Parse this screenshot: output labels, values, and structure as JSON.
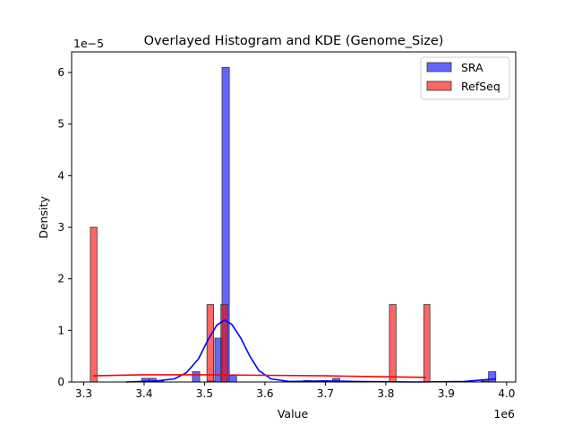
{
  "chart_data": {
    "type": "histogram+kde",
    "title": "Overlayed Histogram and KDE (Genome_Size)",
    "xlabel": "Value",
    "ylabel": "Density",
    "x_offset_label": "1e6",
    "y_offset_label": "1e−5",
    "xlim": [
      3.28,
      4.015
    ],
    "ylim": [
      0,
      6.4
    ],
    "x_ticks": [
      "3.3",
      "3.4",
      "3.5",
      "3.6",
      "3.7",
      "3.8",
      "3.9",
      "4.0"
    ],
    "x_tick_values": [
      3.3,
      3.4,
      3.5,
      3.6,
      3.7,
      3.8,
      3.9,
      4.0
    ],
    "y_ticks": [
      "0",
      "1",
      "2",
      "3",
      "4",
      "5",
      "6"
    ],
    "y_tick_values": [
      0,
      1,
      2,
      3,
      4,
      5,
      6
    ],
    "grid": false,
    "legend_position": "top-right",
    "series": [
      {
        "name": "SRA",
        "color": "#0000ff",
        "bins": [
          [
            3.396,
            3.408,
            0.07
          ],
          [
            3.408,
            3.42,
            0.07
          ],
          [
            3.42,
            3.432,
            0.02
          ],
          [
            3.48,
            3.492,
            0.2
          ],
          [
            3.505,
            3.517,
            0.02
          ],
          [
            3.517,
            3.529,
            0.85
          ],
          [
            3.529,
            3.541,
            6.1
          ],
          [
            3.541,
            3.553,
            0.13
          ],
          [
            3.664,
            3.676,
            0.03
          ],
          [
            3.712,
            3.724,
            0.07
          ],
          [
            3.958,
            3.97,
            0.02
          ],
          [
            3.97,
            3.982,
            0.2
          ]
        ],
        "kde": [
          [
            3.37,
            0.0
          ],
          [
            3.42,
            0.02
          ],
          [
            3.45,
            0.06
          ],
          [
            3.47,
            0.18
          ],
          [
            3.49,
            0.45
          ],
          [
            3.505,
            0.8
          ],
          [
            3.52,
            1.1
          ],
          [
            3.533,
            1.2
          ],
          [
            3.545,
            1.12
          ],
          [
            3.56,
            0.85
          ],
          [
            3.575,
            0.5
          ],
          [
            3.59,
            0.22
          ],
          [
            3.61,
            0.06
          ],
          [
            3.64,
            0.01
          ],
          [
            3.7,
            0.02
          ],
          [
            3.75,
            0.01
          ],
          [
            3.85,
            0.0
          ],
          [
            3.93,
            0.01
          ],
          [
            3.96,
            0.04
          ],
          [
            3.982,
            0.06
          ]
        ]
      },
      {
        "name": "RefSeq",
        "color": "#ff0000",
        "bins": [
          [
            3.311,
            3.322,
            3.0
          ],
          [
            3.504,
            3.515,
            1.5
          ],
          [
            3.527,
            3.538,
            1.5
          ],
          [
            3.806,
            3.817,
            1.5
          ],
          [
            3.863,
            3.873,
            1.5
          ]
        ],
        "kde": [
          [
            3.315,
            0.12
          ],
          [
            3.4,
            0.14
          ],
          [
            3.5,
            0.14
          ],
          [
            3.6,
            0.13
          ],
          [
            3.7,
            0.12
          ],
          [
            3.8,
            0.1
          ],
          [
            3.867,
            0.09
          ]
        ]
      }
    ]
  }
}
